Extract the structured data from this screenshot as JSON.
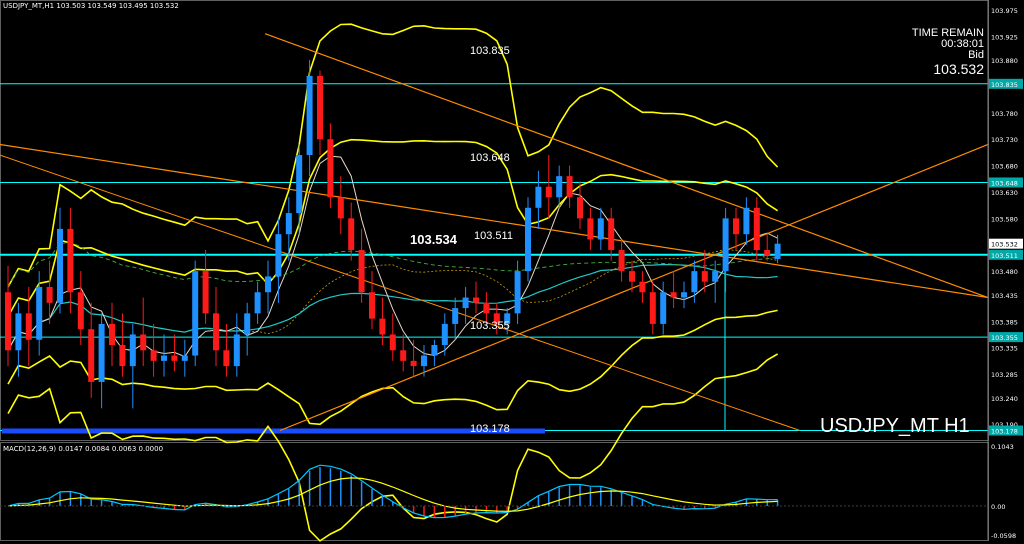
{
  "header": {
    "title": "USDJPY_MT,H1",
    "ohlc": "103.503 103.549 103.495 103.532"
  },
  "macd_header": "MACD(12,26,9) 0.0147 0.0084 0.0063 0.0000",
  "remain": {
    "line1": "TIME REMAIN",
    "line2": "00:38:01",
    "line3": "Bid",
    "line4": "103.532"
  },
  "symbol_label": "USDJPY_MT H1",
  "levels": {
    "l1": "103.835",
    "l2": "103.648",
    "l3": "103.534",
    "l4": "103.511",
    "l5": "103.355",
    "l6": "103.178"
  },
  "price_axis": {
    "ticks": [
      "103.975",
      "103.925",
      "103.880",
      "103.835",
      "103.780",
      "103.730",
      "103.680",
      "103.648",
      "103.630",
      "103.580",
      "103.532",
      "103.511",
      "103.480",
      "103.435",
      "103.385",
      "103.355",
      "103.335",
      "103.285",
      "103.240",
      "103.190",
      "103.178"
    ],
    "highlighted": [
      "103.835",
      "103.648",
      "103.532",
      "103.511",
      "103.355",
      "103.178"
    ]
  },
  "macd_axis": {
    "ticks": [
      "0.1043",
      "0.00",
      "-0.0598"
    ]
  },
  "colors": {
    "background": "#000000",
    "bull": "#1e90ff",
    "bear": "#ff1a1a",
    "bollinger": "#ffff00",
    "level_line": "#00ffff",
    "trendline": "#ff8c00",
    "ma_white": "#e8d8c8",
    "ma_cyan": "#20c8c8",
    "ma_dashed": "#40b040",
    "macd_line": "#00c8ff",
    "signal_line": "#ffff00"
  },
  "chart_data": {
    "type": "candlestick",
    "instrument": "USDJPY_MT",
    "timeframe": "H1",
    "ylim": [
      103.16,
      103.99
    ],
    "horizontal_levels": [
      103.835,
      103.648,
      103.511,
      103.355,
      103.178
    ],
    "candles": [
      {
        "o": 103.44,
        "h": 103.49,
        "l": 103.3,
        "c": 103.33
      },
      {
        "o": 103.33,
        "h": 103.42,
        "l": 103.28,
        "c": 103.4
      },
      {
        "o": 103.4,
        "h": 103.45,
        "l": 103.3,
        "c": 103.35
      },
      {
        "o": 103.35,
        "h": 103.48,
        "l": 103.32,
        "c": 103.45
      },
      {
        "o": 103.45,
        "h": 103.5,
        "l": 103.38,
        "c": 103.42
      },
      {
        "o": 103.42,
        "h": 103.6,
        "l": 103.4,
        "c": 103.56
      },
      {
        "o": 103.56,
        "h": 103.6,
        "l": 103.4,
        "c": 103.44
      },
      {
        "o": 103.44,
        "h": 103.48,
        "l": 103.34,
        "c": 103.37
      },
      {
        "o": 103.37,
        "h": 103.42,
        "l": 103.24,
        "c": 103.27
      },
      {
        "o": 103.27,
        "h": 103.4,
        "l": 103.22,
        "c": 103.38
      },
      {
        "o": 103.38,
        "h": 103.42,
        "l": 103.3,
        "c": 103.34
      },
      {
        "o": 103.34,
        "h": 103.4,
        "l": 103.28,
        "c": 103.3
      },
      {
        "o": 103.3,
        "h": 103.38,
        "l": 103.22,
        "c": 103.36
      },
      {
        "o": 103.36,
        "h": 103.43,
        "l": 103.3,
        "c": 103.33
      },
      {
        "o": 103.33,
        "h": 103.38,
        "l": 103.28,
        "c": 103.31
      },
      {
        "o": 103.31,
        "h": 103.36,
        "l": 103.28,
        "c": 103.32
      },
      {
        "o": 103.32,
        "h": 103.36,
        "l": 103.29,
        "c": 103.31
      },
      {
        "o": 103.31,
        "h": 103.35,
        "l": 103.28,
        "c": 103.32
      },
      {
        "o": 103.32,
        "h": 103.5,
        "l": 103.3,
        "c": 103.48
      },
      {
        "o": 103.48,
        "h": 103.52,
        "l": 103.38,
        "c": 103.4
      },
      {
        "o": 103.4,
        "h": 103.45,
        "l": 103.3,
        "c": 103.33
      },
      {
        "o": 103.33,
        "h": 103.38,
        "l": 103.28,
        "c": 103.3
      },
      {
        "o": 103.3,
        "h": 103.4,
        "l": 103.28,
        "c": 103.36
      },
      {
        "o": 103.36,
        "h": 103.42,
        "l": 103.32,
        "c": 103.4
      },
      {
        "o": 103.4,
        "h": 103.46,
        "l": 103.38,
        "c": 103.44
      },
      {
        "o": 103.44,
        "h": 103.5,
        "l": 103.4,
        "c": 103.47
      },
      {
        "o": 103.47,
        "h": 103.58,
        "l": 103.42,
        "c": 103.55
      },
      {
        "o": 103.55,
        "h": 103.62,
        "l": 103.5,
        "c": 103.59
      },
      {
        "o": 103.59,
        "h": 103.72,
        "l": 103.55,
        "c": 103.7
      },
      {
        "o": 103.7,
        "h": 103.88,
        "l": 103.66,
        "c": 103.85
      },
      {
        "o": 103.85,
        "h": 103.86,
        "l": 103.7,
        "c": 103.73
      },
      {
        "o": 103.73,
        "h": 103.76,
        "l": 103.6,
        "c": 103.62
      },
      {
        "o": 103.62,
        "h": 103.66,
        "l": 103.55,
        "c": 103.58
      },
      {
        "o": 103.58,
        "h": 103.61,
        "l": 103.5,
        "c": 103.52
      },
      {
        "o": 103.52,
        "h": 103.56,
        "l": 103.42,
        "c": 103.44
      },
      {
        "o": 103.44,
        "h": 103.48,
        "l": 103.37,
        "c": 103.39
      },
      {
        "o": 103.39,
        "h": 103.43,
        "l": 103.34,
        "c": 103.36
      },
      {
        "o": 103.36,
        "h": 103.4,
        "l": 103.31,
        "c": 103.33
      },
      {
        "o": 103.33,
        "h": 103.36,
        "l": 103.29,
        "c": 103.31
      },
      {
        "o": 103.31,
        "h": 103.35,
        "l": 103.28,
        "c": 103.3
      },
      {
        "o": 103.3,
        "h": 103.34,
        "l": 103.28,
        "c": 103.32
      },
      {
        "o": 103.32,
        "h": 103.35,
        "l": 103.3,
        "c": 103.34
      },
      {
        "o": 103.34,
        "h": 103.4,
        "l": 103.32,
        "c": 103.38
      },
      {
        "o": 103.38,
        "h": 103.43,
        "l": 103.35,
        "c": 103.41
      },
      {
        "o": 103.41,
        "h": 103.45,
        "l": 103.38,
        "c": 103.43
      },
      {
        "o": 103.43,
        "h": 103.46,
        "l": 103.4,
        "c": 103.42
      },
      {
        "o": 103.42,
        "h": 103.44,
        "l": 103.38,
        "c": 103.4
      },
      {
        "o": 103.4,
        "h": 103.42,
        "l": 103.36,
        "c": 103.38
      },
      {
        "o": 103.38,
        "h": 103.41,
        "l": 103.36,
        "c": 103.4
      },
      {
        "o": 103.4,
        "h": 103.5,
        "l": 103.38,
        "c": 103.48
      },
      {
        "o": 103.48,
        "h": 103.62,
        "l": 103.46,
        "c": 103.6
      },
      {
        "o": 103.6,
        "h": 103.67,
        "l": 103.56,
        "c": 103.64
      },
      {
        "o": 103.64,
        "h": 103.7,
        "l": 103.58,
        "c": 103.62
      },
      {
        "o": 103.62,
        "h": 103.68,
        "l": 103.6,
        "c": 103.66
      },
      {
        "o": 103.66,
        "h": 103.68,
        "l": 103.6,
        "c": 103.62
      },
      {
        "o": 103.62,
        "h": 103.65,
        "l": 103.56,
        "c": 103.58
      },
      {
        "o": 103.58,
        "h": 103.6,
        "l": 103.52,
        "c": 103.54
      },
      {
        "o": 103.54,
        "h": 103.6,
        "l": 103.52,
        "c": 103.58
      },
      {
        "o": 103.58,
        "h": 103.6,
        "l": 103.5,
        "c": 103.52
      },
      {
        "o": 103.52,
        "h": 103.54,
        "l": 103.46,
        "c": 103.48
      },
      {
        "o": 103.48,
        "h": 103.5,
        "l": 103.44,
        "c": 103.46
      },
      {
        "o": 103.46,
        "h": 103.48,
        "l": 103.42,
        "c": 103.44
      },
      {
        "o": 103.44,
        "h": 103.46,
        "l": 103.36,
        "c": 103.38
      },
      {
        "o": 103.38,
        "h": 103.46,
        "l": 103.36,
        "c": 103.44
      },
      {
        "o": 103.44,
        "h": 103.48,
        "l": 103.41,
        "c": 103.43
      },
      {
        "o": 103.43,
        "h": 103.46,
        "l": 103.41,
        "c": 103.44
      },
      {
        "o": 103.44,
        "h": 103.5,
        "l": 103.42,
        "c": 103.48
      },
      {
        "o": 103.48,
        "h": 103.52,
        "l": 103.44,
        "c": 103.46
      },
      {
        "o": 103.46,
        "h": 103.5,
        "l": 103.42,
        "c": 103.48
      },
      {
        "o": 103.48,
        "h": 103.6,
        "l": 103.44,
        "c": 103.58
      },
      {
        "o": 103.58,
        "h": 103.6,
        "l": 103.52,
        "c": 103.55
      },
      {
        "o": 103.55,
        "h": 103.62,
        "l": 103.53,
        "c": 103.6
      },
      {
        "o": 103.6,
        "h": 103.62,
        "l": 103.5,
        "c": 103.52
      },
      {
        "o": 103.52,
        "h": 103.55,
        "l": 103.5,
        "c": 103.51
      },
      {
        "o": 103.503,
        "h": 103.549,
        "l": 103.495,
        "c": 103.532
      }
    ]
  }
}
